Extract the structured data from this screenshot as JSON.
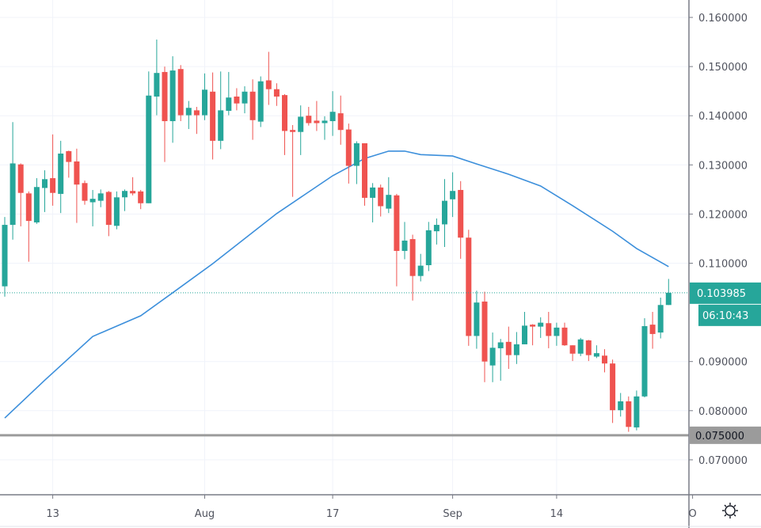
{
  "chart_data": {
    "type": "candlestick",
    "title": "",
    "xlabel": "",
    "ylabel": "",
    "ylim": [
      0.0617,
      0.1635
    ],
    "grid": true,
    "colors": {
      "up": "#26a69a",
      "down": "#ef5350",
      "moving_average": "#3c8fdb",
      "horizontal_line": "#9b9b9b",
      "background": "#ffffff",
      "grid": "#f0f3fa"
    },
    "y_ticks": [
      "0.160000",
      "0.150000",
      "0.140000",
      "0.130000",
      "0.120000",
      "0.110000",
      "0.090000",
      "0.080000",
      "0.070000"
    ],
    "y_tick_values": [
      0.16,
      0.15,
      0.14,
      0.13,
      0.12,
      0.11,
      0.09,
      0.08,
      0.07
    ],
    "x_ticks": [
      {
        "label": "13",
        "date": "Jul 13"
      },
      {
        "label": "Aug",
        "date": "Aug 1"
      },
      {
        "label": "17",
        "date": "Aug 17"
      },
      {
        "label": "Sep",
        "date": "Sep 1"
      },
      {
        "label": "14",
        "date": "Sep 14"
      },
      {
        "label": "O",
        "date": "Oct 1"
      }
    ],
    "candles_ohlc_order": [
      "open",
      "high",
      "low",
      "close"
    ],
    "dates_start": "Jul 7",
    "candles": [
      [
        0.1053,
        0.1194,
        0.1032,
        0.1178
      ],
      [
        0.1178,
        0.1387,
        0.1148,
        0.1303
      ],
      [
        0.1301,
        0.1303,
        0.1175,
        0.1243
      ],
      [
        0.1242,
        0.1246,
        0.1103,
        0.1186
      ],
      [
        0.1183,
        0.1273,
        0.118,
        0.1255
      ],
      [
        0.1253,
        0.1289,
        0.1204,
        0.1271
      ],
      [
        0.1273,
        0.1362,
        0.1217,
        0.1243
      ],
      [
        0.1241,
        0.1349,
        0.1202,
        0.1323
      ],
      [
        0.1328,
        0.1329,
        0.1274,
        0.1306
      ],
      [
        0.1307,
        0.1333,
        0.1182,
        0.126
      ],
      [
        0.1263,
        0.1268,
        0.1219,
        0.1227
      ],
      [
        0.1224,
        0.1249,
        0.1175,
        0.1231
      ],
      [
        0.1227,
        0.125,
        0.1214,
        0.1242
      ],
      [
        0.1245,
        0.1247,
        0.1155,
        0.1178
      ],
      [
        0.1176,
        0.1246,
        0.1169,
        0.1234
      ],
      [
        0.1234,
        0.125,
        0.1206,
        0.1247
      ],
      [
        0.1247,
        0.1275,
        0.1238,
        0.1242
      ],
      [
        0.1246,
        0.1249,
        0.121,
        0.1222
      ],
      [
        0.1222,
        0.149,
        0.1222,
        0.1441
      ],
      [
        0.1439,
        0.1555,
        0.1401,
        0.1487
      ],
      [
        0.1489,
        0.15,
        0.1306,
        0.1389
      ],
      [
        0.1389,
        0.1521,
        0.1345,
        0.1492
      ],
      [
        0.1495,
        0.1503,
        0.1389,
        0.1401
      ],
      [
        0.1401,
        0.143,
        0.1373,
        0.1416
      ],
      [
        0.1411,
        0.1418,
        0.1363,
        0.1401
      ],
      [
        0.1401,
        0.1486,
        0.1391,
        0.1453
      ],
      [
        0.1449,
        0.1488,
        0.1311,
        0.1349
      ],
      [
        0.1349,
        0.149,
        0.1332,
        0.1411
      ],
      [
        0.141,
        0.1489,
        0.1401,
        0.1437
      ],
      [
        0.1439,
        0.1456,
        0.1411,
        0.1425
      ],
      [
        0.1425,
        0.146,
        0.1405,
        0.1449
      ],
      [
        0.1449,
        0.1474,
        0.1351,
        0.1391
      ],
      [
        0.1388,
        0.148,
        0.1377,
        0.147
      ],
      [
        0.1472,
        0.153,
        0.1422,
        0.1454
      ],
      [
        0.1454,
        0.1466,
        0.142,
        0.1439
      ],
      [
        0.1442,
        0.1444,
        0.132,
        0.1369
      ],
      [
        0.1371,
        0.1381,
        0.1235,
        0.1367
      ],
      [
        0.1367,
        0.1421,
        0.132,
        0.1398
      ],
      [
        0.14,
        0.1418,
        0.138,
        0.1385
      ],
      [
        0.139,
        0.143,
        0.1369,
        0.1385
      ],
      [
        0.1385,
        0.1399,
        0.1351,
        0.139
      ],
      [
        0.1389,
        0.145,
        0.1359,
        0.1408
      ],
      [
        0.1405,
        0.1441,
        0.1341,
        0.1371
      ],
      [
        0.1372,
        0.1384,
        0.1262,
        0.1298
      ],
      [
        0.1298,
        0.1348,
        0.1261,
        0.1344
      ],
      [
        0.1344,
        0.1344,
        0.1217,
        0.1233
      ],
      [
        0.1233,
        0.1263,
        0.1183,
        0.1254
      ],
      [
        0.1254,
        0.126,
        0.1195,
        0.1216
      ],
      [
        0.1211,
        0.1275,
        0.1202,
        0.1239
      ],
      [
        0.1238,
        0.1241,
        0.1053,
        0.1125
      ],
      [
        0.1125,
        0.1184,
        0.1108,
        0.1146
      ],
      [
        0.1149,
        0.1158,
        0.1024,
        0.1074
      ],
      [
        0.1074,
        0.1119,
        0.1063,
        0.1095
      ],
      [
        0.1096,
        0.1184,
        0.1084,
        0.1167
      ],
      [
        0.1165,
        0.1191,
        0.1138,
        0.1178
      ],
      [
        0.1179,
        0.1271,
        0.1133,
        0.1227
      ],
      [
        0.123,
        0.1285,
        0.1194,
        0.1247
      ],
      [
        0.1249,
        0.1267,
        0.1109,
        0.1152
      ],
      [
        0.1152,
        0.1168,
        0.0932,
        0.0952
      ],
      [
        0.0952,
        0.1044,
        0.0926,
        0.102
      ],
      [
        0.1022,
        0.1042,
        0.0858,
        0.09
      ],
      [
        0.0892,
        0.0959,
        0.0858,
        0.0928
      ],
      [
        0.0927,
        0.0946,
        0.0861,
        0.0939
      ],
      [
        0.094,
        0.0971,
        0.0885,
        0.0913
      ],
      [
        0.0913,
        0.096,
        0.0895,
        0.0935
      ],
      [
        0.0935,
        0.1001,
        0.0935,
        0.0973
      ],
      [
        0.0975,
        0.0976,
        0.0933,
        0.0971
      ],
      [
        0.0971,
        0.099,
        0.0948,
        0.0979
      ],
      [
        0.0978,
        0.1001,
        0.0927,
        0.0952
      ],
      [
        0.0952,
        0.0979,
        0.0932,
        0.0969
      ],
      [
        0.0969,
        0.0979,
        0.0932,
        0.0933
      ],
      [
        0.0933,
        0.0933,
        0.0901,
        0.0916
      ],
      [
        0.0916,
        0.0948,
        0.0911,
        0.0945
      ],
      [
        0.0943,
        0.0944,
        0.0901,
        0.0913
      ],
      [
        0.091,
        0.0933,
        0.0907,
        0.0917
      ],
      [
        0.0912,
        0.0925,
        0.0878,
        0.0896
      ],
      [
        0.0896,
        0.0904,
        0.0775,
        0.0801
      ],
      [
        0.0801,
        0.0836,
        0.0788,
        0.0819
      ],
      [
        0.0819,
        0.0829,
        0.0757,
        0.0767
      ],
      [
        0.0766,
        0.0841,
        0.076,
        0.0829
      ],
      [
        0.0829,
        0.0988,
        0.0827,
        0.0972
      ],
      [
        0.0975,
        0.1001,
        0.0926,
        0.0956
      ],
      [
        0.0959,
        0.103,
        0.0947,
        0.1015
      ],
      [
        0.1015,
        0.1068,
        0.1015,
        0.103985
      ]
    ],
    "moving_average": [
      [
        0,
        0.0785
      ],
      [
        5,
        0.0862
      ],
      [
        11,
        0.0951
      ],
      [
        17,
        0.0993
      ],
      [
        21,
        0.104
      ],
      [
        26,
        0.1099
      ],
      [
        34,
        0.1201
      ],
      [
        41,
        0.1278
      ],
      [
        45,
        0.1313
      ],
      [
        48,
        0.1328
      ],
      [
        50,
        0.1328
      ],
      [
        52,
        0.1321
      ],
      [
        56,
        0.1318
      ],
      [
        59,
        0.1302
      ],
      [
        63,
        0.1281
      ],
      [
        67,
        0.1257
      ],
      [
        71,
        0.1217
      ],
      [
        76,
        0.1165
      ],
      [
        79,
        0.113
      ],
      [
        83,
        0.1093
      ]
    ],
    "horizontal_line": {
      "value": 0.075,
      "label": "0.075000"
    },
    "last_price": {
      "value": 0.103985,
      "label": "0.103985",
      "countdown": "06:10:43"
    }
  },
  "toolbar": {
    "settings_icon": "sun-gear-icon"
  }
}
